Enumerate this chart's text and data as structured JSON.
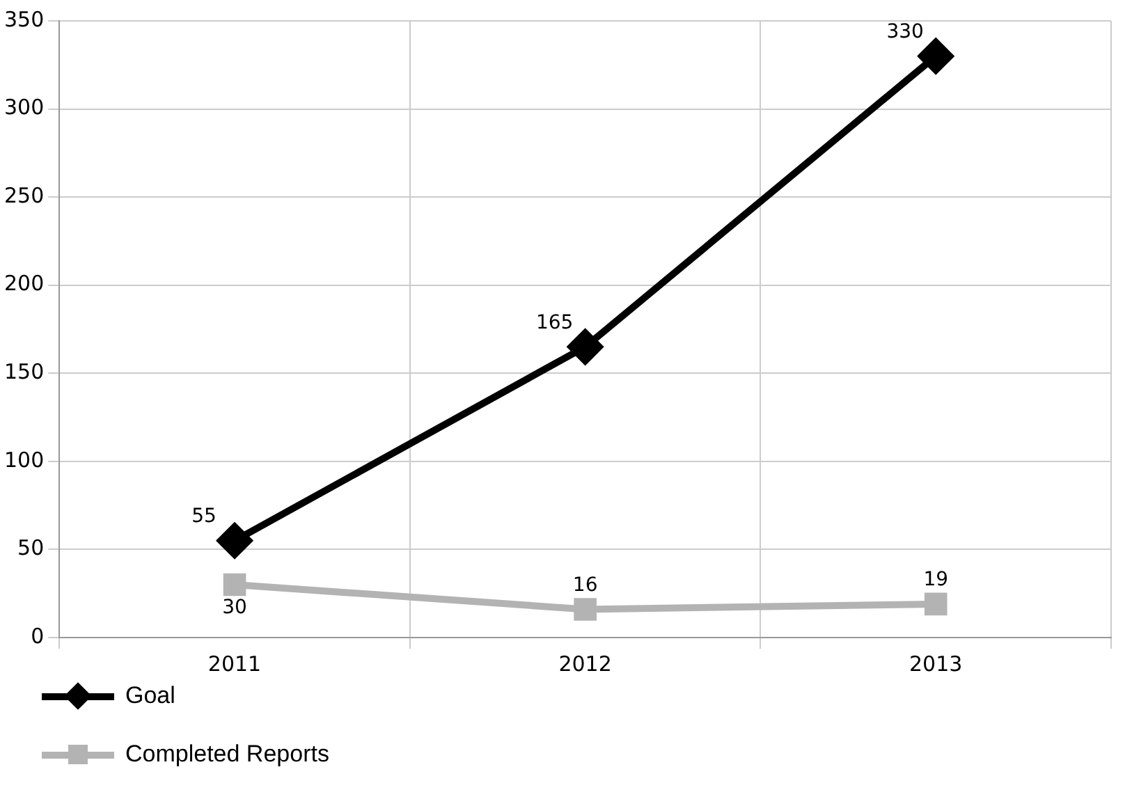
{
  "chart_data": {
    "type": "line",
    "categories": [
      "2011",
      "2012",
      "2013"
    ],
    "series": [
      {
        "name": "Goal",
        "color": "#000000",
        "values": [
          55,
          165,
          330
        ],
        "marker": "diamond"
      },
      {
        "name": "Completed Reports",
        "color": "#b3b3b3",
        "values": [
          30,
          16,
          19
        ],
        "marker": "square"
      }
    ],
    "ylim": [
      0,
      350
    ],
    "yticks": [
      0,
      50,
      100,
      150,
      200,
      250,
      300,
      350
    ],
    "grid": true,
    "legend": "bottom left",
    "data_labels": true
  }
}
